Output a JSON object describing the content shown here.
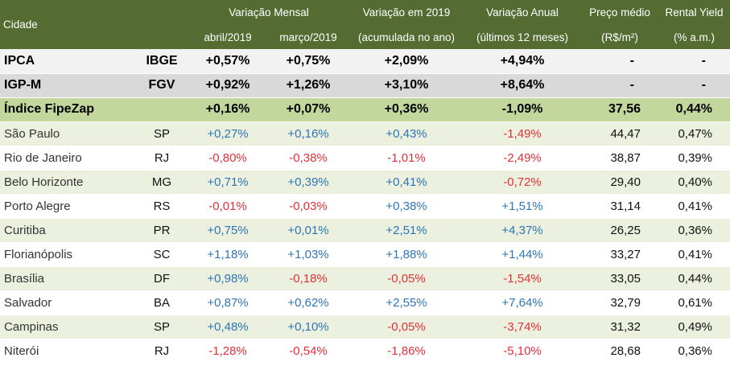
{
  "header": {
    "cidade": "Cidade",
    "variacao_mensal": "Variação Mensal",
    "abril": "abril/2019",
    "marco": "março/2019",
    "variacao_2019": "Variação em 2019",
    "variacao_2019_sub": "(acumulada no ano)",
    "variacao_anual": "Variação Anual",
    "variacao_anual_sub": "(últimos 12 meses)",
    "preco_medio": "Preço médio",
    "preco_medio_sub": "(R$/m²)",
    "rental_yield": "Rental Yield",
    "rental_yield_sub": "(% a.m.)"
  },
  "indices": [
    {
      "name": "IPCA",
      "source": "IBGE",
      "abr": "+0,57%",
      "mar": "+0,75%",
      "ano": "+2,09%",
      "anual": "+4,94%",
      "preco": "-",
      "yield": "-"
    },
    {
      "name": "IGP-M",
      "source": "FGV",
      "abr": "+0,92%",
      "mar": "+1,26%",
      "ano": "+3,10%",
      "anual": "+8,64%",
      "preco": "-",
      "yield": "-"
    },
    {
      "name": "Índice FipeZap",
      "source": "",
      "abr": "+0,16%",
      "mar": "+0,07%",
      "ano": "+0,36%",
      "anual": "-1,09%",
      "preco": "37,56",
      "yield": "0,44%"
    }
  ],
  "cities": [
    {
      "name": "São Paulo",
      "uf": "SP",
      "abr": "+0,27%",
      "mar": "+0,16%",
      "ano": "+0,43%",
      "anual": "-1,49%",
      "preco": "44,47",
      "yield": "0,47%"
    },
    {
      "name": "Rio de Janeiro",
      "uf": "RJ",
      "abr": "-0,80%",
      "mar": "-0,38%",
      "ano": "-1,01%",
      "anual": "-2,49%",
      "preco": "38,87",
      "yield": "0,39%"
    },
    {
      "name": "Belo Horizonte",
      "uf": "MG",
      "abr": "+0,71%",
      "mar": "+0,39%",
      "ano": "+0,41%",
      "anual": "-0,72%",
      "preco": "29,40",
      "yield": "0,40%"
    },
    {
      "name": "Porto Alegre",
      "uf": "RS",
      "abr": "-0,01%",
      "mar": "-0,03%",
      "ano": "+0,38%",
      "anual": "+1,51%",
      "preco": "31,14",
      "yield": "0,41%"
    },
    {
      "name": "Curitiba",
      "uf": "PR",
      "abr": "+0,75%",
      "mar": "+0,01%",
      "ano": "+2,51%",
      "anual": "+4,37%",
      "preco": "26,25",
      "yield": "0,36%"
    },
    {
      "name": "Florianópolis",
      "uf": "SC",
      "abr": "+1,18%",
      "mar": "+1,03%",
      "ano": "+1,88%",
      "anual": "+1,44%",
      "preco": "33,27",
      "yield": "0,41%"
    },
    {
      "name": "Brasília",
      "uf": "DF",
      "abr": "+0,98%",
      "mar": "-0,18%",
      "ano": "-0,05%",
      "anual": "-1,54%",
      "preco": "33,05",
      "yield": "0,44%"
    },
    {
      "name": "Salvador",
      "uf": "BA",
      "abr": "+0,87%",
      "mar": "+0,62%",
      "ano": "+2,55%",
      "anual": "+7,64%",
      "preco": "32,79",
      "yield": "0,61%"
    },
    {
      "name": "Campinas",
      "uf": "SP",
      "abr": "+0,48%",
      "mar": "+0,10%",
      "ano": "-0,05%",
      "anual": "-3,74%",
      "preco": "31,32",
      "yield": "0,49%"
    },
    {
      "name": "Niterói",
      "uf": "RJ",
      "abr": "-1,28%",
      "mar": "-0,54%",
      "ano": "-1,86%",
      "anual": "-5,10%",
      "preco": "28,68",
      "yield": "0,36%"
    }
  ],
  "colors": {
    "header_bg": "#546c32",
    "positive": "#2e75b6",
    "negative": "#e0303a",
    "fipezap_bg": "#c3d69b",
    "row_light": "#ebf1de"
  }
}
